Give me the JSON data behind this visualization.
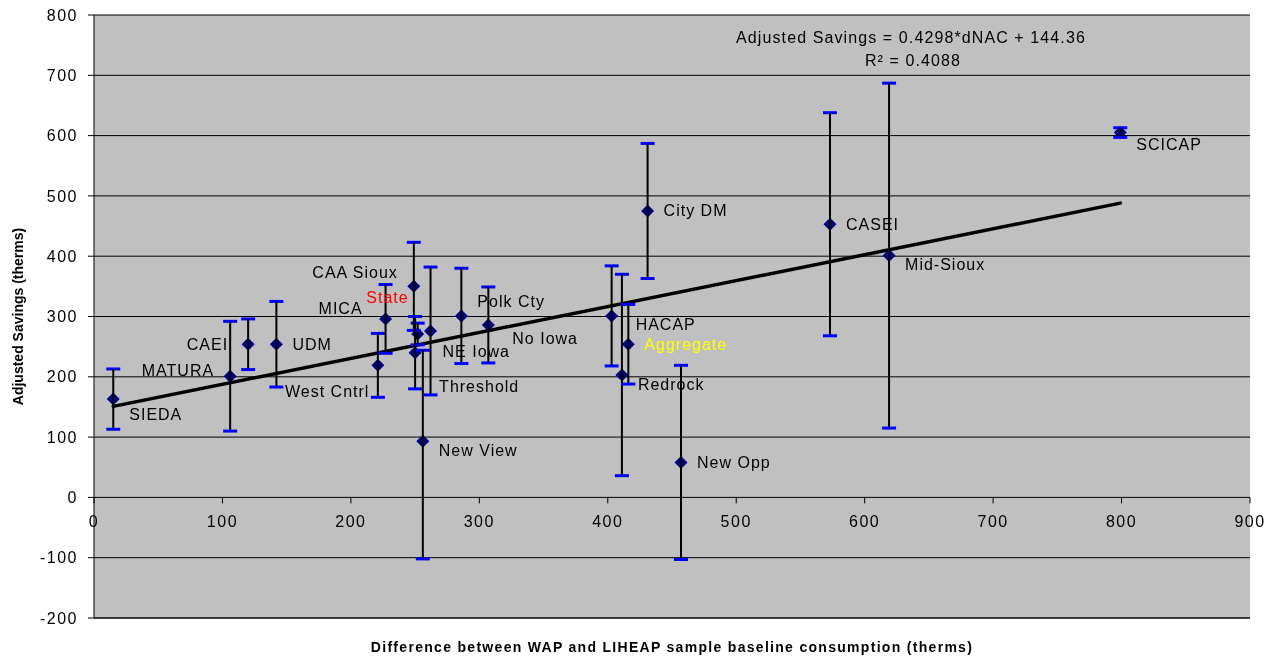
{
  "chart_data": {
    "type": "scatter",
    "xlabel": "Difference between WAP and LIHEAP sample baseline consumption (therms)",
    "ylabel": "Adjusted Savings (therms)",
    "xlim": [
      0,
      900
    ],
    "xticks": [
      0,
      100,
      200,
      300,
      400,
      500,
      600,
      700,
      800,
      900
    ],
    "ylim": [
      -200,
      800
    ],
    "yticks": [
      -200,
      -100,
      0,
      100,
      200,
      300,
      400,
      500,
      600,
      700,
      800
    ],
    "grid": "y",
    "series": [
      {
        "color": "#000080",
        "marker": "diamond",
        "x": [
          15,
          106,
          120,
          142,
          221,
          227,
          252,
          249,
          250,
          256,
          262,
          286,
          307,
          403,
          411,
          416,
          431,
          457,
          573,
          619,
          799
        ],
        "values": [
          163,
          201,
          254,
          254,
          219,
          296,
          271,
          350,
          240,
          93,
          276,
          301,
          286,
          301,
          203,
          254,
          475,
          58,
          453,
          401,
          605
        ],
        "errors": [
          50,
          91,
          42,
          71,
          53,
          57,
          18,
          73,
          60,
          [
            -102,
            244
          ],
          106,
          79,
          63,
          83,
          167,
          66,
          112,
          161,
          185,
          286,
          8
        ]
      },
      {
        "type": "line",
        "color": "#000000",
        "x": [
          15,
          799
        ],
        "values": [
          151,
          488
        ]
      }
    ],
    "annotations": [
      "Adjusted Savings = 0.4298*dNAC + 144.36",
      "R² = 0.4088",
      {
        "text": "SIEDA",
        "x": 15,
        "y": 163
      },
      {
        "text": "MATURA",
        "x": 106,
        "y": 201
      },
      {
        "text": "CAEI",
        "x": 120,
        "y": 254
      },
      {
        "text": "UDM",
        "x": 142,
        "y": 254
      },
      {
        "text": "West Cntrl",
        "x": 221,
        "y": 219
      },
      {
        "text": "MICA",
        "x": 227,
        "y": 296
      },
      {
        "text": "State",
        "x": 252,
        "y": 271
      },
      {
        "text": "CAA Sioux",
        "x": 249,
        "y": 350
      },
      {
        "text": "Threshold",
        "x": 250,
        "y": 240
      },
      {
        "text": "New View",
        "x": 256,
        "y": 93
      },
      {
        "text": "NE Iowa",
        "x": 262,
        "y": 276
      },
      {
        "text": "Polk Cty",
        "x": 286,
        "y": 301
      },
      {
        "text": "No Iowa",
        "x": 307,
        "y": 286
      },
      {
        "text": "HACAP",
        "x": 403,
        "y": 301
      },
      {
        "text": "Redrock",
        "x": 411,
        "y": 203
      },
      {
        "text": "Aggregate",
        "x": 416,
        "y": 254
      },
      {
        "text": "City DM",
        "x": 431,
        "y": 475
      },
      {
        "text": "New Opp",
        "x": 457,
        "y": 58
      },
      {
        "text": "CASEI",
        "x": 573,
        "y": 453
      },
      {
        "text": "Mid-Sioux",
        "x": 619,
        "y": 401
      },
      {
        "text": "SCICAP",
        "x": 799,
        "y": 605
      }
    ]
  }
}
